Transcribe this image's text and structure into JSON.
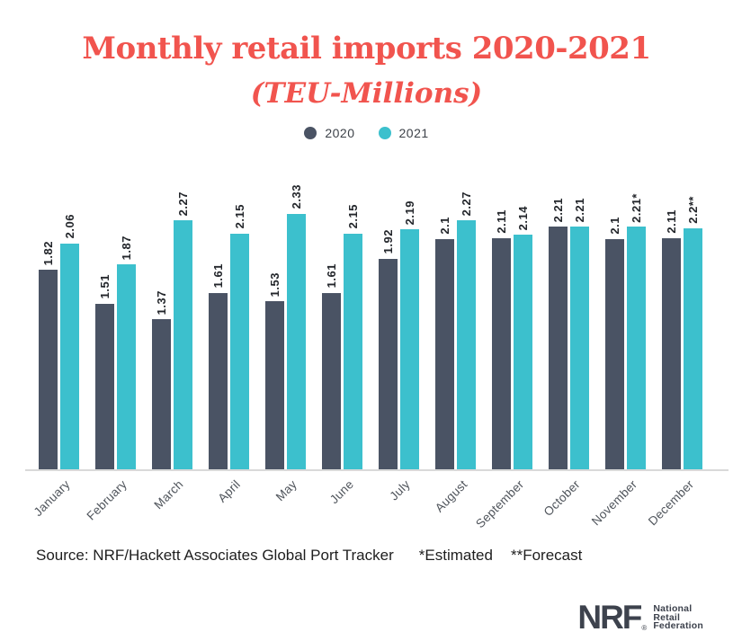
{
  "header": {
    "title": "Monthly retail imports 2020-2021",
    "subtitle": "(TEU-Millions)",
    "title_color": "#f1544e"
  },
  "chart_data": {
    "type": "bar",
    "title": "Monthly retail imports 2020-2021",
    "subtitle": "(TEU-Millions)",
    "categories": [
      "January",
      "February",
      "March",
      "April",
      "May",
      "June",
      "July",
      "August",
      "September",
      "October",
      "November",
      "December"
    ],
    "series": [
      {
        "name": "2020",
        "color": "#4a5364",
        "values": [
          1.82,
          1.51,
          1.37,
          1.61,
          1.53,
          1.61,
          1.92,
          2.1,
          2.11,
          2.21,
          2.1,
          2.11
        ],
        "labels": [
          "1.82",
          "1.51",
          "1.37",
          "1.61",
          "1.53",
          "1.61",
          "1.92",
          "2.1",
          "2.11",
          "2.21",
          "2.1",
          "2.11"
        ]
      },
      {
        "name": "2021",
        "color": "#3cc0cd",
        "values": [
          2.06,
          1.87,
          2.27,
          2.15,
          2.33,
          2.15,
          2.19,
          2.27,
          2.14,
          2.21,
          2.21,
          2.2
        ],
        "labels": [
          "2.06",
          "1.87",
          "2.27",
          "2.15",
          "2.33",
          "2.15",
          "2.19",
          "2.27",
          "2.14",
          "2.21",
          "2.21*",
          "2.2**"
        ]
      }
    ],
    "ylim": [
      0,
      2.45
    ],
    "grid": false,
    "legend_position": "top",
    "value_labels_rotated": true,
    "axis_line_color": "#d9d9d9"
  },
  "footer": {
    "source": "Source: NRF/Hackett Associates Global Port Tracker",
    "estimated": "*Estimated",
    "forecast": "**Forecast"
  },
  "logo": {
    "acronym": "NRF",
    "registered": "®",
    "name_lines": [
      "National",
      "Retail",
      "Federation"
    ]
  }
}
